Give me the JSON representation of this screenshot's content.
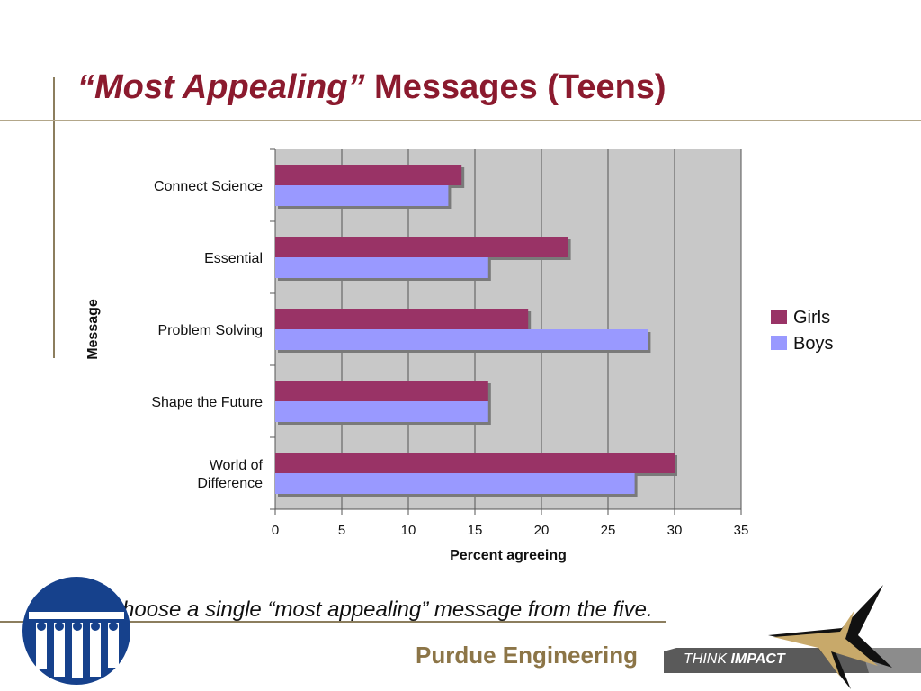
{
  "slide": {
    "title_italic": "“Most Appealing”",
    "title_rest": " Messages (Teens)",
    "note": "hoose a single “most appealing” message from the five.",
    "brand": "Purdue Engineering",
    "think": "THINK",
    "impact": "IMPACT"
  },
  "colors": {
    "title": "#8b1a2e",
    "girls": "#993366",
    "boys": "#9999ff",
    "plot_bg": "#c8c8c8",
    "brand": "#8c7547"
  },
  "chart_data": {
    "type": "bar",
    "orientation": "horizontal",
    "categories": [
      "Connect Science",
      "Essential",
      "Problem Solving",
      "Shape the Future",
      "World of Difference"
    ],
    "series": [
      {
        "name": "Girls",
        "values": [
          14,
          22,
          19,
          16,
          30
        ],
        "color": "#993366"
      },
      {
        "name": "Boys",
        "values": [
          13,
          16,
          28,
          16,
          27
        ],
        "color": "#9999ff"
      }
    ],
    "xlabel": "Percent agreeing",
    "ylabel": "Message",
    "xlim": [
      0,
      35
    ],
    "xticks": [
      0,
      5,
      10,
      15,
      20,
      25,
      30,
      35
    ],
    "grid": true,
    "legend": "right"
  }
}
